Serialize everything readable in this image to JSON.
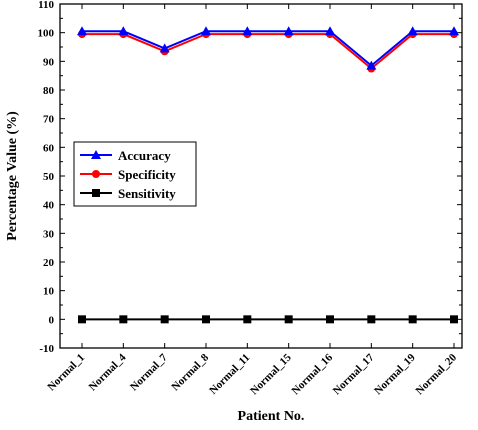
{
  "chart_data": {
    "type": "line",
    "title": "",
    "xlabel": "Patient No.",
    "ylabel": "Percentage Value (%)",
    "ylim": [
      -10,
      110
    ],
    "yticks": [
      -10,
      0,
      10,
      20,
      30,
      40,
      50,
      60,
      70,
      80,
      90,
      100,
      110
    ],
    "ytick_labels": [
      "-10",
      "0",
      "10",
      "20",
      "30",
      "40",
      "50",
      "60",
      "70",
      "80",
      "90",
      "100",
      "110"
    ],
    "categories": [
      "Normal_1",
      "Normal_4",
      "Normal_7",
      "Normal_8",
      "Normal_11",
      "Normal_15",
      "Normal_16",
      "Normal_17",
      "Normal_19",
      "Normal_20"
    ],
    "grid": false,
    "legend_position": "left-middle",
    "series": [
      {
        "name": "Accuracy",
        "color": "#0000ff",
        "marker": "triangle",
        "values": [
          100.5,
          100.5,
          94.5,
          100.5,
          100.5,
          100.5,
          100.5,
          88.5,
          100.5,
          100.5
        ]
      },
      {
        "name": "Specificity",
        "color": "#ff0000",
        "marker": "circle",
        "values": [
          99.5,
          99.5,
          93.5,
          99.5,
          99.5,
          99.5,
          99.5,
          87.5,
          99.5,
          99.5
        ]
      },
      {
        "name": "Sensitivity",
        "color": "#000000",
        "marker": "square",
        "values": [
          0,
          0,
          0,
          0,
          0,
          0,
          0,
          0,
          0,
          0
        ]
      }
    ]
  }
}
